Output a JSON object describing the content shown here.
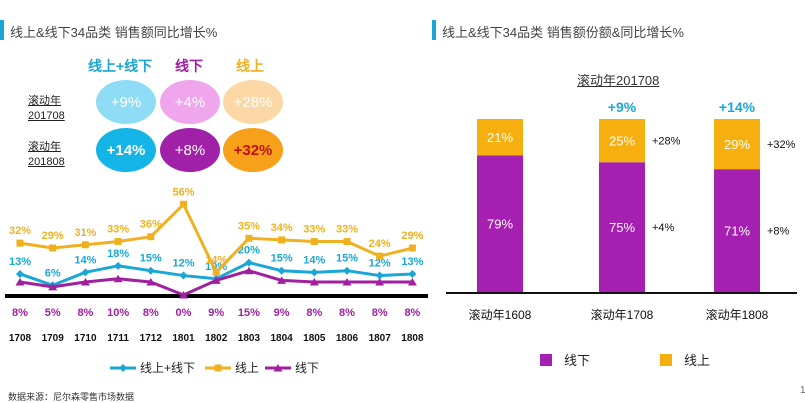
{
  "left": {
    "title": "线上&线下34品类 销售额同比增长%",
    "headers": [
      "线上+线下",
      "线下",
      "线上"
    ],
    "header_colors": [
      "#1aa7d6",
      "#a020a0",
      "#f0b020"
    ],
    "row_labels": [
      [
        "滚动年",
        "201708"
      ],
      [
        "滚动年",
        "201808"
      ]
    ],
    "bubbles": [
      [
        "+9%",
        "+4%",
        "+28%"
      ],
      [
        "+14%",
        "+8%",
        "+32%"
      ]
    ],
    "bubble_fill": [
      [
        "#8fdcf7",
        "#efa6ec",
        "#fcd8a6"
      ],
      [
        "#14b4e6",
        "#a020a8",
        "#f7a01a"
      ]
    ],
    "source": "数据来源：尼尔森零售市场数据"
  },
  "chart_data": [
    {
      "type": "line",
      "title": "",
      "categories": [
        "1708",
        "1709",
        "1710",
        "1711",
        "1712",
        "1801",
        "1802",
        "1803",
        "1804",
        "1805",
        "1806",
        "1807",
        "1808"
      ],
      "series": [
        {
          "name": "线上+线下",
          "color": "#1aa7d6",
          "values": [
            13,
            6,
            14,
            18,
            15,
            12,
            10,
            20,
            15,
            14,
            15,
            12,
            13
          ],
          "labels": [
            "13%",
            "6%",
            "14%",
            "18%",
            "15%",
            "12%",
            "10%",
            "20%",
            "15%",
            "14%",
            "15%",
            "12%",
            "13%"
          ]
        },
        {
          "name": "线上",
          "color": "#f0b020",
          "values": [
            32,
            29,
            31,
            33,
            36,
            56,
            14,
            35,
            34,
            33,
            33,
            24,
            29
          ],
          "labels": [
            "32%",
            "29%",
            "31%",
            "33%",
            "36%",
            "56%",
            "14%",
            "35%",
            "34%",
            "33%",
            "33%",
            "24%",
            "29%"
          ]
        },
        {
          "name": "线下",
          "color": "#a020a0",
          "values": [
            8,
            5,
            8,
            10,
            8,
            0,
            9,
            15,
            9,
            8,
            8,
            8,
            8
          ],
          "labels": [
            "8%",
            "5%",
            "8%",
            "10%",
            "8%",
            "0%",
            "9%",
            "15%",
            "9%",
            "8%",
            "8%",
            "8%",
            "8%"
          ]
        }
      ],
      "legend": [
        "线上+线下",
        "线上",
        "线下"
      ]
    },
    {
      "type": "bar",
      "title": "滚动年201708",
      "categories": [
        "滚动年1608",
        "滚动年1708",
        "滚动年1808"
      ],
      "series": [
        {
          "name": "线下",
          "color": "#a51fb0",
          "values": [
            79,
            75,
            71
          ],
          "labels": [
            "79%",
            "75%",
            "71%"
          ]
        },
        {
          "name": "线上",
          "color": "#f5b00f",
          "values": [
            21,
            25,
            29
          ],
          "labels": [
            "21%",
            "25%",
            "29%"
          ]
        }
      ],
      "top_labels": [
        "",
        "+9%",
        "+14%"
      ],
      "side_labels": [
        [
          "",
          ""
        ],
        [
          "+28%",
          "+4%"
        ],
        [
          "+32%",
          "+8%"
        ]
      ],
      "legend": [
        "线下",
        "线上"
      ]
    }
  ],
  "right": {
    "title": "线上&线下34品类 销售额份额&同比增长%",
    "subtitle": "滚动年201708",
    "page_number": "1"
  }
}
